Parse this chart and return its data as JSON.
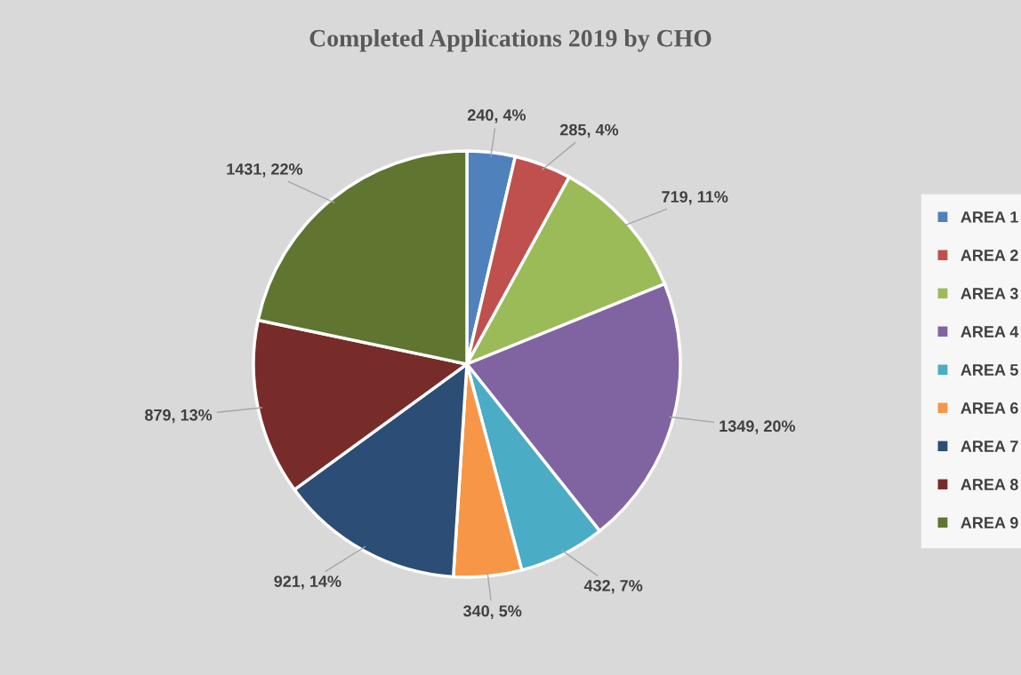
{
  "chart_data": {
    "type": "pie",
    "title": "Completed Applications 2019 by CHO",
    "categories": [
      "AREA 1",
      "AREA 2",
      "AREA 3",
      "AREA 4",
      "AREA 5",
      "AREA 6",
      "AREA 7",
      "AREA 8",
      "AREA 9"
    ],
    "values": [
      240,
      285,
      719,
      1349,
      432,
      340,
      921,
      879,
      1431
    ],
    "value_labels": [
      "240, 4%",
      "285, 4%",
      "719, 11%",
      "1349, 20%",
      "432, 7%",
      "340, 5%",
      "921, 14%",
      "879, 13%",
      "1431, 22%"
    ],
    "colors": [
      "#4f81bd",
      "#c0504d",
      "#9bbb59",
      "#8064a2",
      "#4bacc6",
      "#f79646",
      "#2c4d75",
      "#772c2a",
      "#5f7530"
    ],
    "legend": "right"
  }
}
